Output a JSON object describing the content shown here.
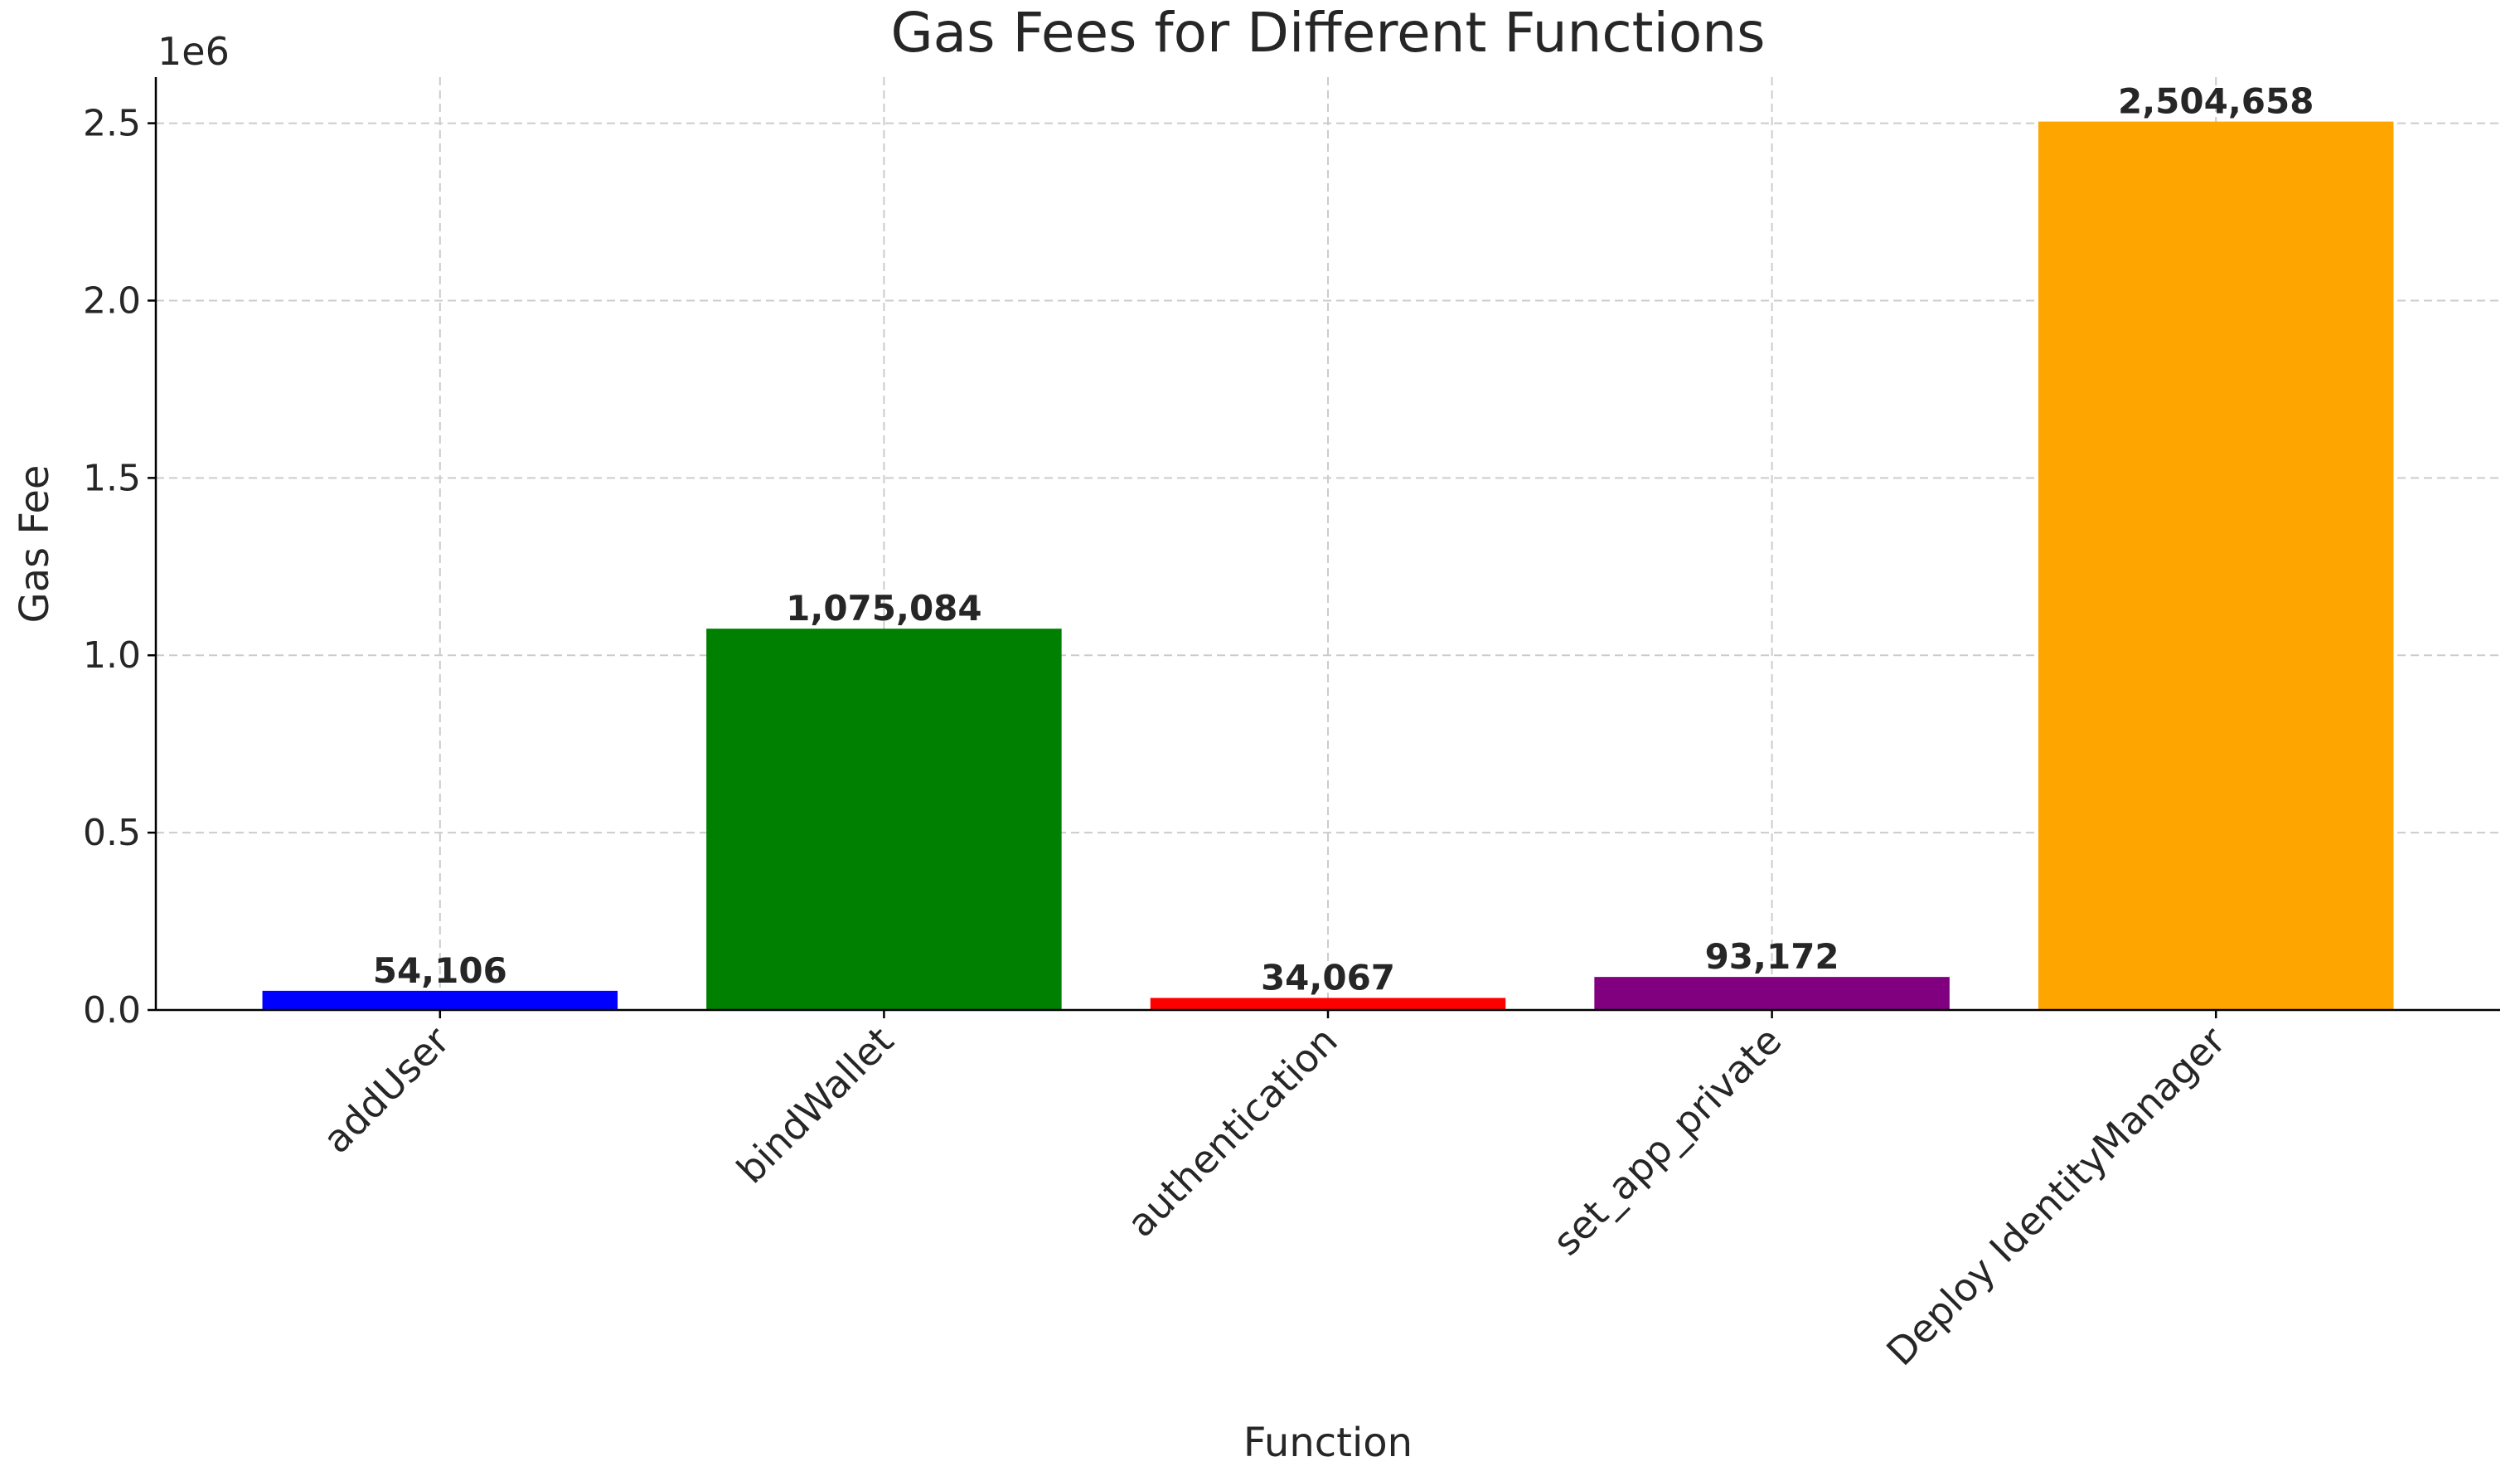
{
  "chart_data": {
    "type": "bar",
    "title": "Gas Fees for Different Functions",
    "x_label": "Function",
    "y_label": "Gas Fee",
    "y_offset_label": "1e6",
    "categories": [
      "addUser",
      "bindWallet",
      "authentication",
      "set_app_private",
      "Deploy IdentityManager"
    ],
    "values": [
      54106,
      1075084,
      34067,
      93172,
      2504658
    ],
    "value_labels": [
      "54,106",
      "1,075,084",
      "34,067",
      "93,172",
      "2,504,658"
    ],
    "colors": [
      "#0000ff",
      "#008000",
      "#ff0000",
      "#800080",
      "#ffa500"
    ],
    "ylim": [
      0,
      2630000
    ],
    "yticks": [
      {
        "value": 0,
        "label": "0.0"
      },
      {
        "value": 500000,
        "label": "0.5"
      },
      {
        "value": 1000000,
        "label": "1.0"
      },
      {
        "value": 1500000,
        "label": "1.5"
      },
      {
        "value": 2000000,
        "label": "2.0"
      },
      {
        "value": 2500000,
        "label": "2.5"
      }
    ],
    "grid": true
  }
}
